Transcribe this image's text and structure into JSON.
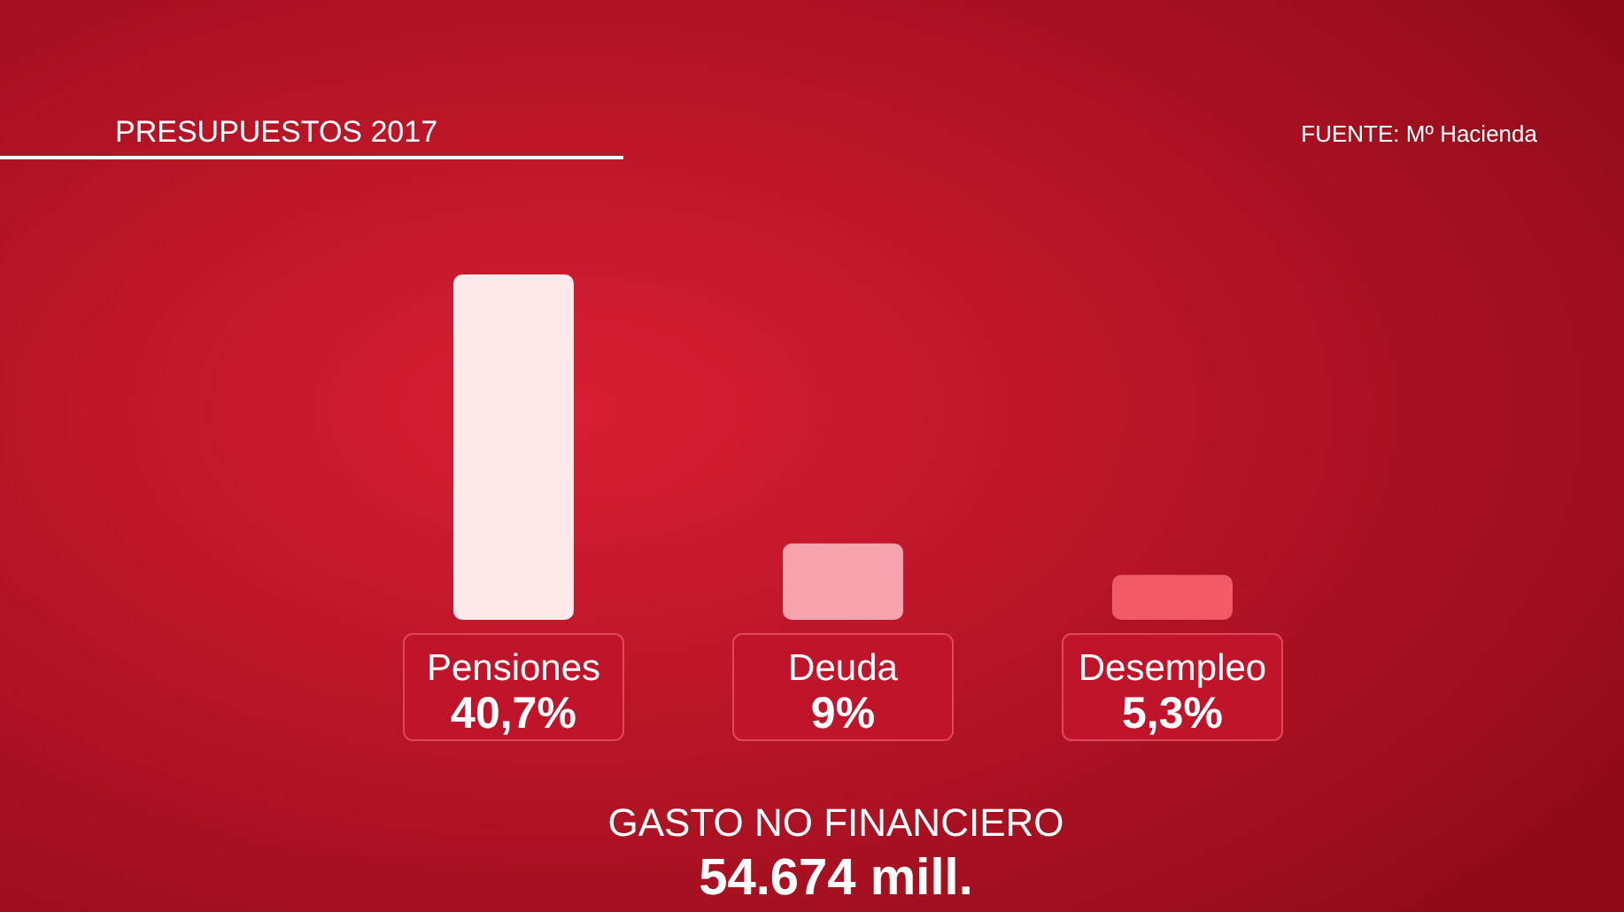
{
  "chart_data": {
    "type": "bar",
    "title": "PRESUPUESTOS 2017",
    "categories": [
      "Pensiones",
      "Deuda",
      "Desempleo"
    ],
    "values": [
      40.7,
      9,
      5.3
    ],
    "colors": [
      "#fde8ea",
      "#f7a3ad",
      "#f25a68"
    ],
    "value_labels": [
      "40,7%",
      "9%",
      "5,3%"
    ],
    "annotations": [
      "FUENTE: Mº Hacienda",
      "GASTO NO FINANCIERO",
      "54.674 mill."
    ]
  }
}
